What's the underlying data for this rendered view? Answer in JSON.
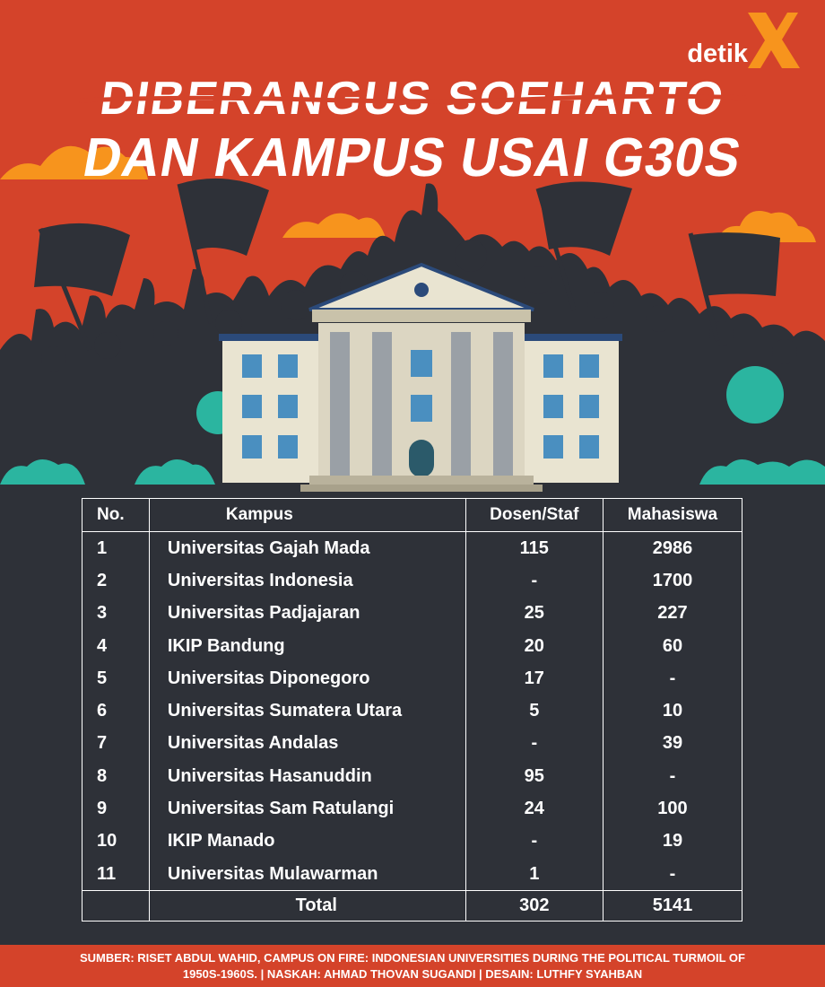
{
  "brand": {
    "logo_text": "detik",
    "logo_mark": "X",
    "accent": "#f7941d",
    "bg_top": "#d4432a",
    "bg_dark": "#2e3138"
  },
  "title": {
    "line1": "DIBERANGUS SOEHARTO",
    "line2": "DAN KAMPUS USAI G30S"
  },
  "illustration": {
    "icons": [
      "protest-crowd-silhouette",
      "flag-icon",
      "university-building-icon",
      "tree-icon",
      "cloud-icon"
    ]
  },
  "table": {
    "headers": {
      "no": "No.",
      "kampus": "Kampus",
      "dosen": "Dosen/Staf",
      "mahasiswa": "Mahasiswa"
    },
    "rows": [
      {
        "no": "1",
        "kampus": "Universitas Gajah Mada",
        "dosen": "115",
        "mahasiswa": "2986"
      },
      {
        "no": "2",
        "kampus": "Universitas Indonesia",
        "dosen": "-",
        "mahasiswa": "1700"
      },
      {
        "no": "3",
        "kampus": "Universitas Padjajaran",
        "dosen": "25",
        "mahasiswa": "227"
      },
      {
        "no": "4",
        "kampus": "IKIP Bandung",
        "dosen": "20",
        "mahasiswa": "60"
      },
      {
        "no": "5",
        "kampus": "Universitas Diponegoro",
        "dosen": "17",
        "mahasiswa": "-"
      },
      {
        "no": "6",
        "kampus": "Universitas Sumatera Utara",
        "dosen": "5",
        "mahasiswa": "10"
      },
      {
        "no": "7",
        "kampus": "Universitas Andalas",
        "dosen": "-",
        "mahasiswa": "39"
      },
      {
        "no": "8",
        "kampus": "Universitas Hasanuddin",
        "dosen": "95",
        "mahasiswa": "-"
      },
      {
        "no": "9",
        "kampus": "Universitas Sam Ratulangi",
        "dosen": "24",
        "mahasiswa": "100"
      },
      {
        "no": "10",
        "kampus": "IKIP Manado",
        "dosen": "-",
        "mahasiswa": "19"
      },
      {
        "no": "11",
        "kampus": "Universitas Mulawarman",
        "dosen": "1",
        "mahasiswa": "-"
      }
    ],
    "total": {
      "label": "Total",
      "dosen": "302",
      "mahasiswa": "5141"
    }
  },
  "footer": {
    "line1": "SUMBER: RISET ABDUL WAHID, CAMPUS ON FIRE: INDONESIAN UNIVERSITIES DURING THE POLITICAL TURMOIL OF",
    "line2": "1950S-1960S. | NASKAH: AHMAD THOVAN SUGANDI | DESAIN: LUTHFY SYAHBAN"
  }
}
